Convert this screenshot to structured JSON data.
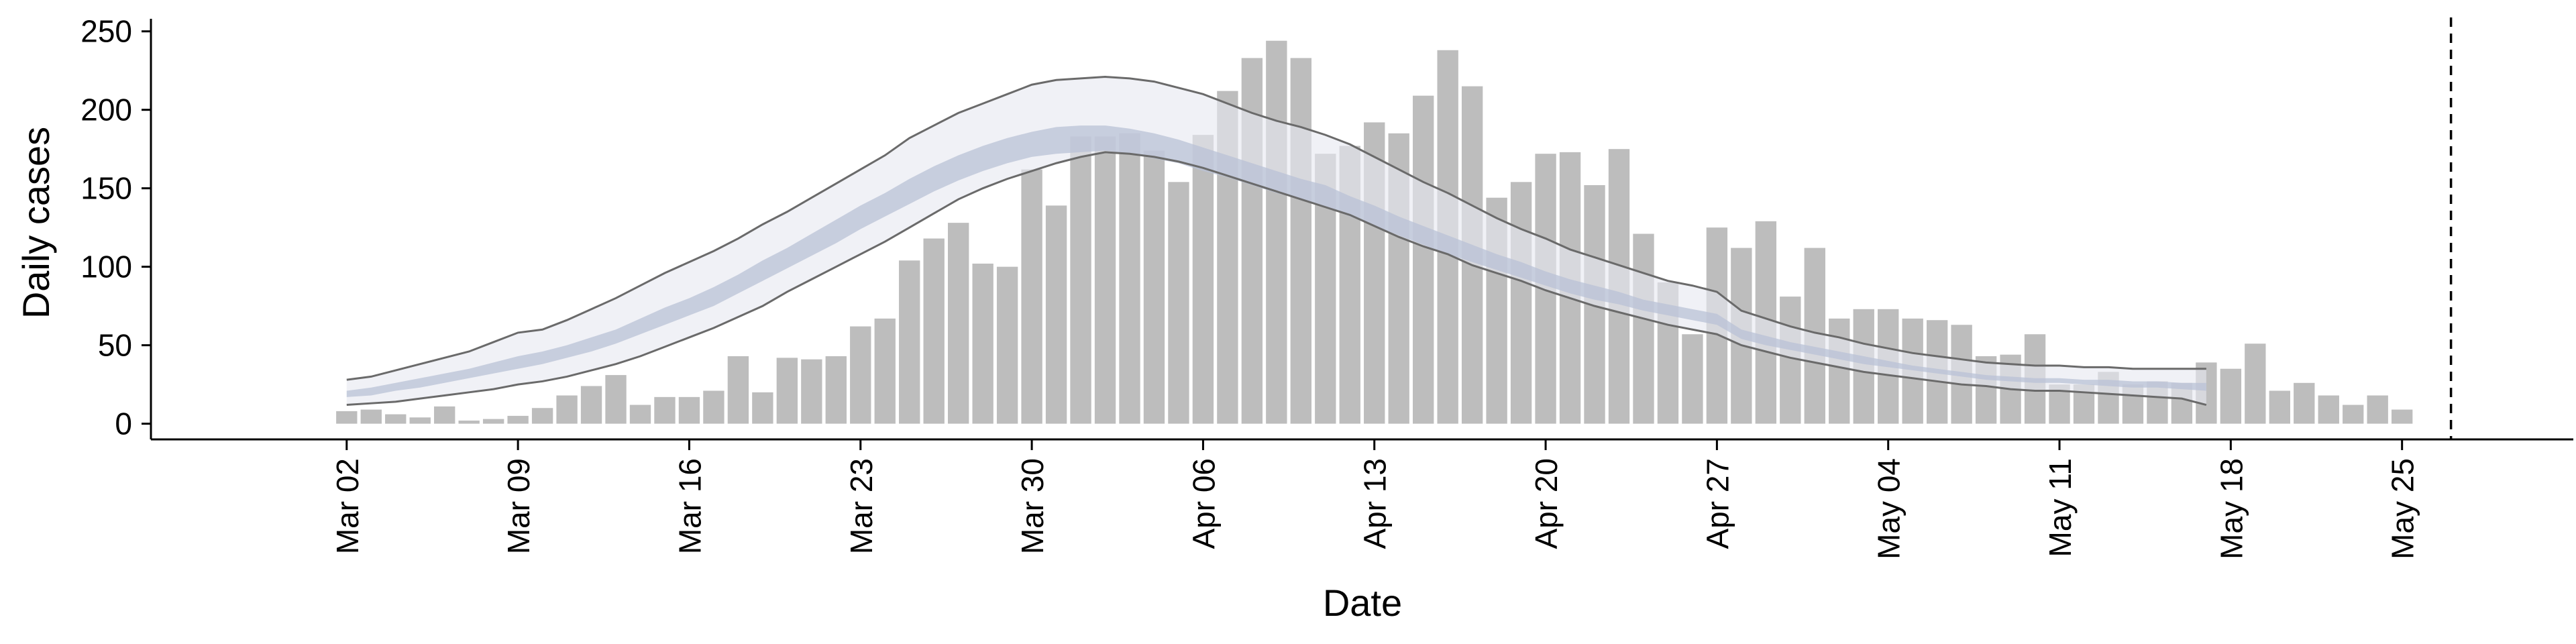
{
  "chart_data": {
    "type": "bar",
    "xlabel": "Date",
    "ylabel": "Daily cases",
    "ylim": [
      -10,
      258
    ],
    "yticks": [
      0,
      50,
      100,
      150,
      200,
      250
    ],
    "xlim": [
      "2020-02-23",
      "2020-06-01"
    ],
    "xticks": [
      {
        "date": "2020-03-02",
        "label": "Mar 02"
      },
      {
        "date": "2020-03-09",
        "label": "Mar 09"
      },
      {
        "date": "2020-03-16",
        "label": "Mar 16"
      },
      {
        "date": "2020-03-23",
        "label": "Mar 23"
      },
      {
        "date": "2020-03-30",
        "label": "Mar 30"
      },
      {
        "date": "2020-04-06",
        "label": "Apr 06"
      },
      {
        "date": "2020-04-13",
        "label": "Apr 13"
      },
      {
        "date": "2020-04-20",
        "label": "Apr 20"
      },
      {
        "date": "2020-04-27",
        "label": "Apr 27"
      },
      {
        "date": "2020-05-04",
        "label": "May 04"
      },
      {
        "date": "2020-05-11",
        "label": "May 11"
      },
      {
        "date": "2020-05-18",
        "label": "May 18"
      },
      {
        "date": "2020-05-25",
        "label": "May 25"
      }
    ],
    "reference_line": {
      "date": "2020-05-27",
      "style": "dashed"
    },
    "bars": {
      "start_date": "2020-03-02",
      "values": [
        8,
        9,
        6,
        4,
        11,
        2,
        3,
        5,
        10,
        18,
        24,
        31,
        12,
        17,
        17,
        21,
        43,
        20,
        42,
        41,
        43,
        62,
        67,
        104,
        118,
        128,
        102,
        100,
        162,
        139,
        183,
        183,
        185,
        174,
        154,
        184,
        212,
        233,
        244,
        233,
        172,
        177,
        192,
        185,
        209,
        238,
        215,
        144,
        154,
        172,
        173,
        152,
        175,
        121,
        90,
        57,
        125,
        112,
        129,
        81,
        112,
        67,
        73,
        73,
        67,
        66,
        63,
        43,
        44,
        57,
        25,
        25,
        33,
        25,
        27,
        26,
        39,
        35,
        51,
        21,
        26,
        18,
        12,
        18,
        9
      ],
      "color": "#bdbdbd"
    },
    "model": {
      "start_date": "2020-03-02",
      "end_date": "2020-05-18",
      "color_outer": "#e6e8f0",
      "color_inner": "#bac1d5",
      "line_color": "#6a6a6a",
      "upper": [
        28,
        30,
        34,
        38,
        42,
        46,
        52,
        58,
        60,
        66,
        73,
        80,
        88,
        96,
        103,
        110,
        118,
        127,
        135,
        144,
        153,
        162,
        171,
        182,
        190,
        198,
        204,
        210,
        216,
        219,
        220,
        221,
        220,
        218,
        214,
        210,
        204,
        198,
        193,
        189,
        184,
        178,
        170,
        162,
        154,
        147,
        139,
        131,
        124,
        118,
        111,
        106,
        101,
        96,
        91,
        88,
        84,
        72,
        67,
        62,
        58,
        55,
        51,
        48,
        45,
        43,
        41,
        39,
        38,
        37,
        37,
        36,
        36,
        35,
        35,
        35,
        35
      ],
      "lower": [
        12,
        13,
        14,
        16,
        18,
        20,
        22,
        25,
        27,
        30,
        34,
        38,
        43,
        49,
        55,
        61,
        68,
        75,
        84,
        92,
        100,
        108,
        116,
        125,
        134,
        143,
        150,
        156,
        161,
        166,
        170,
        173,
        172,
        170,
        167,
        163,
        158,
        153,
        148,
        143,
        138,
        133,
        126,
        119,
        113,
        108,
        101,
        96,
        91,
        85,
        80,
        75,
        71,
        67,
        63,
        60,
        57,
        50,
        46,
        42,
        39,
        36,
        33,
        31,
        29,
        27,
        25,
        24,
        22,
        21,
        21,
        20,
        19,
        18,
        17,
        16,
        12
      ],
      "inner_upper": [
        21,
        23,
        26,
        29,
        32,
        35,
        39,
        43,
        46,
        50,
        55,
        60,
        67,
        74,
        80,
        87,
        95,
        104,
        112,
        121,
        130,
        139,
        147,
        156,
        164,
        171,
        177,
        182,
        186,
        189,
        190,
        190,
        188,
        185,
        181,
        176,
        171,
        166,
        161,
        156,
        152,
        145,
        139,
        132,
        126,
        120,
        114,
        108,
        103,
        97,
        92,
        88,
        84,
        79,
        76,
        73,
        70,
        60,
        56,
        52,
        49,
        46,
        43,
        40,
        37,
        35,
        33,
        31,
        30,
        29,
        29,
        28,
        28,
        27,
        27,
        26,
        26
      ],
      "inner_lower": [
        17,
        18,
        21,
        23,
        26,
        29,
        32,
        35,
        38,
        42,
        46,
        51,
        57,
        63,
        69,
        75,
        83,
        91,
        99,
        107,
        115,
        124,
        132,
        140,
        148,
        155,
        161,
        166,
        170,
        172,
        173,
        174,
        172,
        169,
        166,
        161,
        157,
        152,
        147,
        143,
        138,
        132,
        126,
        120,
        114,
        108,
        103,
        98,
        93,
        88,
        83,
        79,
        76,
        72,
        69,
        66,
        63,
        54,
        50,
        47,
        44,
        41,
        38,
        36,
        34,
        32,
        30,
        28,
        27,
        26,
        26,
        25,
        24,
        23,
        23,
        22,
        21
      ]
    }
  }
}
